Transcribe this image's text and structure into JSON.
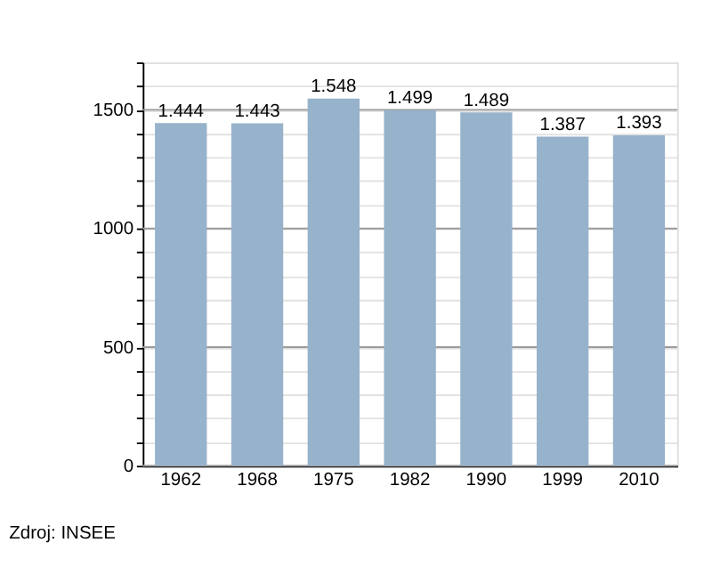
{
  "chart_data": {
    "type": "bar",
    "categories": [
      "1962",
      "1968",
      "1975",
      "1982",
      "1990",
      "1999",
      "2010"
    ],
    "values": [
      1444,
      1443,
      1548,
      1499,
      1489,
      1387,
      1393
    ],
    "value_labels": [
      "1.444",
      "1.443",
      "1.548",
      "1.499",
      "1.489",
      "1.387",
      "1.393"
    ],
    "color": "#97b2cb",
    "ylim": [
      0,
      1700
    ],
    "yticks": [
      0,
      {
        "value": 100,
        "label": null
      },
      {
        "value": 200,
        "label": null
      },
      {
        "value": 300,
        "label": null
      },
      {
        "value": 400,
        "label": null
      },
      500,
      {
        "value": 600,
        "label": null
      },
      {
        "value": 700,
        "label": null
      },
      {
        "value": 800,
        "label": null
      },
      {
        "value": 900,
        "label": null
      },
      1000,
      {
        "value": 1100,
        "label": null
      },
      {
        "value": 1200,
        "label": null
      },
      {
        "value": 1300,
        "label": null
      },
      {
        "value": 1400,
        "label": null
      },
      1500,
      {
        "value": 1600,
        "label": null
      },
      {
        "value": 1700,
        "label": null
      }
    ],
    "grid": "y",
    "annotations": [
      "Zdroj: INSEE"
    ]
  }
}
